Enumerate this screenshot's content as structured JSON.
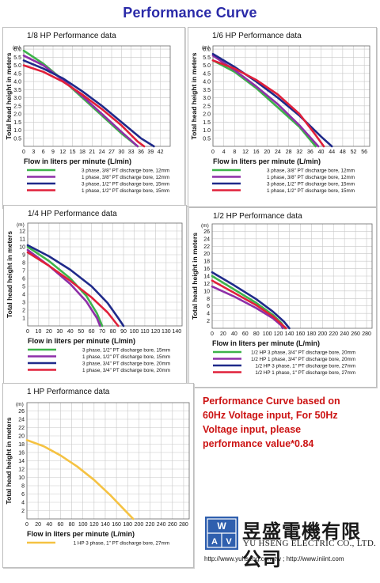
{
  "page_title": "Performance Curve",
  "note_lines": [
    "Performance Curve based on",
    "60Hz Voltage input, For 50Hz",
    "Voltage input, please",
    "performance value*0.84"
  ],
  "company": {
    "name_cn": "昱盛電機有限公司",
    "name_en": "YU HSENG ELECTRIC CO., LTD.",
    "urls": "http://www.yuhseng.com.tw ; http://www.iniint.com",
    "logo_text": [
      "W",
      "A",
      "V"
    ]
  },
  "colors": {
    "green": "#3db34a",
    "purple": "#8e2fa8",
    "navy": "#1f2a8a",
    "red": "#e0203a",
    "orange": "#f5c242",
    "title": "#2a2aa8",
    "note": "#cc1313"
  },
  "chart_data": [
    {
      "type": "line",
      "title": "1/8 HP Performance data",
      "xlabel": "Flow in liters per minute (L/min)",
      "ylabel": "Total head height in meters",
      "y_unit": "(m)",
      "xlim": [
        0,
        45
      ],
      "ylim": [
        0,
        6.2
      ],
      "xticks": [
        0,
        3,
        6,
        9,
        12,
        15,
        18,
        21,
        24,
        27,
        30,
        33,
        36,
        39,
        42
      ],
      "yticks": [
        0.5,
        1.0,
        1.5,
        2.0,
        2.5,
        3.0,
        3.5,
        4.0,
        4.5,
        5.0,
        5.5,
        6.0
      ],
      "grid": true,
      "series": [
        {
          "name": "3 phase, 3/8\" PT discharge bore, 12mm",
          "color": "#3db34a",
          "points": [
            [
              0,
              5.9
            ],
            [
              6,
              5.1
            ],
            [
              12,
              4.1
            ],
            [
              18,
              3.0
            ],
            [
              24,
              1.9
            ],
            [
              30,
              0.8
            ],
            [
              35,
              0
            ]
          ]
        },
        {
          "name": "1 phase, 3/8\" PT discharge bore, 12mm",
          "color": "#8e2fa8",
          "points": [
            [
              0,
              5.6
            ],
            [
              6,
              5.0
            ],
            [
              12,
              4.1
            ],
            [
              18,
              3.1
            ],
            [
              24,
              2.0
            ],
            [
              30,
              0.9
            ],
            [
              35,
              0
            ]
          ]
        },
        {
          "name": "3 phase, 1/2\" PT discharge bore, 15mm",
          "color": "#1f2a8a",
          "points": [
            [
              0,
              5.3
            ],
            [
              6,
              4.8
            ],
            [
              12,
              4.2
            ],
            [
              18,
              3.4
            ],
            [
              24,
              2.5
            ],
            [
              30,
              1.5
            ],
            [
              36,
              0.5
            ],
            [
              40,
              0
            ]
          ]
        },
        {
          "name": "1 phase, 1/2\" PT discharge bore, 15mm",
          "color": "#e0203a",
          "points": [
            [
              0,
              5.0
            ],
            [
              6,
              4.6
            ],
            [
              12,
              4.0
            ],
            [
              18,
              3.2
            ],
            [
              24,
              2.3
            ],
            [
              30,
              1.3
            ],
            [
              35,
              0.3
            ],
            [
              37,
              0
            ]
          ]
        }
      ]
    },
    {
      "type": "line",
      "title": "1/6 HP Performance data",
      "xlabel": "Flow in liters per minute (L/min)",
      "ylabel": "Total head height in meters",
      "y_unit": "(m)",
      "xlim": [
        0,
        58
      ],
      "ylim": [
        0,
        6.2
      ],
      "xticks": [
        0,
        4,
        8,
        12,
        16,
        20,
        24,
        28,
        32,
        36,
        40,
        44,
        48,
        52,
        56
      ],
      "yticks": [
        0.5,
        1.0,
        1.5,
        2.0,
        2.5,
        3.0,
        3.5,
        4.0,
        4.5,
        5.0,
        5.5,
        6.0
      ],
      "grid": true,
      "series": [
        {
          "name": "3 phase, 3/8\" PT discharge bore, 12mm",
          "color": "#3db34a",
          "points": [
            [
              0,
              5.3
            ],
            [
              8,
              4.6
            ],
            [
              16,
              3.6
            ],
            [
              24,
              2.4
            ],
            [
              32,
              1.2
            ],
            [
              38,
              0
            ]
          ]
        },
        {
          "name": "1 phase, 3/8\" PT discharge bore, 12mm",
          "color": "#8e2fa8",
          "points": [
            [
              0,
              5.6
            ],
            [
              8,
              4.7
            ],
            [
              16,
              3.7
            ],
            [
              24,
              2.6
            ],
            [
              32,
              1.3
            ],
            [
              39,
              0
            ]
          ]
        },
        {
          "name": "3 phase, 1/2\" PT discharge bore, 15mm",
          "color": "#1f2a8a",
          "points": [
            [
              0,
              5.7
            ],
            [
              8,
              4.9
            ],
            [
              16,
              4.0
            ],
            [
              24,
              3.0
            ],
            [
              32,
              1.9
            ],
            [
              40,
              0.6
            ],
            [
              44,
              0
            ]
          ]
        },
        {
          "name": "1 phase, 1/2\" PT discharge bore, 15mm",
          "color": "#e0203a",
          "points": [
            [
              0,
              5.3
            ],
            [
              8,
              4.8
            ],
            [
              16,
              4.1
            ],
            [
              24,
              3.2
            ],
            [
              32,
              2.0
            ],
            [
              38,
              0.7
            ],
            [
              41,
              0
            ]
          ]
        }
      ]
    },
    {
      "type": "line",
      "title": "1/4 HP Performance data",
      "xlabel": "Flow in liters per minute (L/min)",
      "ylabel": "Total head height in meters",
      "y_unit": "(m)",
      "xlim": [
        0,
        145
      ],
      "ylim": [
        0,
        13
      ],
      "xticks": [
        0,
        10,
        20,
        30,
        40,
        50,
        60,
        70,
        80,
        90,
        100,
        110,
        120,
        130,
        140
      ],
      "yticks": [
        1,
        2,
        3,
        4,
        5,
        6,
        7,
        8,
        9,
        10,
        11,
        12
      ],
      "grid": true,
      "series": [
        {
          "name": "3 phase, 1/2\" PT discharge bore, 15mm",
          "color": "#3db34a",
          "points": [
            [
              0,
              10.0
            ],
            [
              20,
              8.2
            ],
            [
              40,
              6.0
            ],
            [
              55,
              3.8
            ],
            [
              65,
              1.6
            ],
            [
              70,
              0
            ]
          ]
        },
        {
          "name": "1 phase, 1/2\" PT discharge bore, 15mm",
          "color": "#8e2fa8",
          "points": [
            [
              0,
              9.6
            ],
            [
              20,
              7.6
            ],
            [
              40,
              5.3
            ],
            [
              55,
              3.1
            ],
            [
              65,
              1.0
            ],
            [
              68,
              0
            ]
          ]
        },
        {
          "name": "3 phase, 3/4\" PT discharge bore, 20mm",
          "color": "#1f2a8a",
          "points": [
            [
              0,
              10.2
            ],
            [
              20,
              8.8
            ],
            [
              40,
              7.1
            ],
            [
              60,
              5.0
            ],
            [
              75,
              2.9
            ],
            [
              85,
              1.0
            ],
            [
              90,
              0
            ]
          ]
        },
        {
          "name": "1 phase, 3/4\" PT discharge bore, 20mm",
          "color": "#e0203a",
          "points": [
            [
              0,
              9.3
            ],
            [
              20,
              7.6
            ],
            [
              40,
              5.7
            ],
            [
              60,
              3.6
            ],
            [
              75,
              1.7
            ],
            [
              85,
              0
            ]
          ]
        }
      ]
    },
    {
      "type": "line",
      "title": "1/2 HP      Performance data",
      "xlabel": "Flow in liters per minute (L/min)",
      "ylabel": "Total head height in meters",
      "y_unit": "(m)",
      "xlim": [
        0,
        290
      ],
      "ylim": [
        0,
        28
      ],
      "xticks": [
        0,
        20,
        40,
        60,
        80,
        100,
        120,
        140,
        160,
        180,
        200,
        220,
        240,
        260,
        280
      ],
      "yticks": [
        2,
        4,
        6,
        8,
        10,
        12,
        14,
        16,
        18,
        20,
        22,
        24,
        26
      ],
      "grid": true,
      "series": [
        {
          "name": "1/2 HP 3 phase, 3/4\" PT discharge bore, 20mm",
          "color": "#3db34a",
          "points": [
            [
              0,
              14.0
            ],
            [
              40,
              10.4
            ],
            [
              80,
              6.8
            ],
            [
              110,
              3.6
            ],
            [
              125,
              1.5
            ],
            [
              132,
              0
            ]
          ]
        },
        {
          "name": "1/2 HP 1 phase, 3/4\" PT discharge bore, 20mm",
          "color": "#8e2fa8",
          "points": [
            [
              0,
              11.2
            ],
            [
              40,
              8.5
            ],
            [
              80,
              5.4
            ],
            [
              110,
              2.7
            ],
            [
              125,
              0.8
            ],
            [
              128,
              0
            ]
          ]
        },
        {
          "name": "1/2 HP 3 phase, 1\" PT discharge bore, 27mm",
          "color": "#1f2a8a",
          "points": [
            [
              0,
              15.0
            ],
            [
              40,
              11.5
            ],
            [
              80,
              7.8
            ],
            [
              110,
              4.5
            ],
            [
              130,
              1.8
            ],
            [
              140,
              0
            ]
          ]
        },
        {
          "name": "1/2 HP 1 phase, 1\" PT discharge bore, 27mm",
          "color": "#e0203a",
          "points": [
            [
              0,
              12.8
            ],
            [
              40,
              9.5
            ],
            [
              80,
              6.2
            ],
            [
              110,
              3.2
            ],
            [
              128,
              0.8
            ],
            [
              134,
              0
            ]
          ]
        }
      ]
    },
    {
      "type": "line",
      "title": "1 HP           Performance data",
      "xlabel": "Flow in liters per minute (L/min)",
      "ylabel": "Total head height in meters",
      "y_unit": "(m)",
      "xlim": [
        0,
        290
      ],
      "ylim": [
        0,
        28
      ],
      "xticks": [
        0,
        20,
        40,
        60,
        80,
        100,
        120,
        140,
        160,
        180,
        200,
        220,
        240,
        260,
        280
      ],
      "yticks": [
        2,
        4,
        6,
        8,
        10,
        12,
        14,
        16,
        18,
        20,
        22,
        24,
        26
      ],
      "grid": true,
      "series": [
        {
          "name": "1 HP 3 phase,    1\" PT discharge bore, 27mm",
          "color": "#f5c242",
          "points": [
            [
              0,
              19.0
            ],
            [
              30,
              17.5
            ],
            [
              60,
              15.3
            ],
            [
              90,
              12.6
            ],
            [
              120,
              9.4
            ],
            [
              150,
              5.6
            ],
            [
              180,
              1.4
            ],
            [
              190,
              0
            ]
          ]
        }
      ]
    }
  ]
}
